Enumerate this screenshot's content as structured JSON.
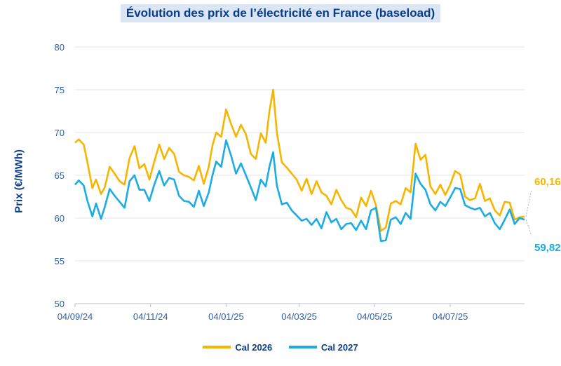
{
  "chart_data": {
    "type": "line",
    "title": "Évolution des prix de l’électricité en France (baseload)",
    "ylabel": "Prix (€/MWh)",
    "ylim": [
      50,
      80
    ],
    "yticks": [
      "50",
      "55",
      "60",
      "65",
      "70",
      "75",
      "80"
    ],
    "xticks": [
      "04/09/24",
      "04/11/24",
      "04/01/25",
      "04/03/25",
      "04/05/25",
      "04/07/25"
    ],
    "x_range": [
      "2024-09-04",
      "2025-09-02"
    ],
    "grid": "horizontal",
    "legend_position": "bottom",
    "series": [
      {
        "name": "Cal 2026",
        "color": "#f7b500",
        "end_label": "60,16",
        "points": [
          [
            "2024-09-04",
            68.8
          ],
          [
            "2024-09-07",
            69.2
          ],
          [
            "2024-09-11",
            68.6
          ],
          [
            "2024-09-14",
            66.5
          ],
          [
            "2024-09-18",
            63.5
          ],
          [
            "2024-09-21",
            64.5
          ],
          [
            "2024-09-25",
            62.8
          ],
          [
            "2024-09-28",
            63.6
          ],
          [
            "2024-10-02",
            66.0
          ],
          [
            "2024-10-06",
            65.2
          ],
          [
            "2024-10-10",
            64.3
          ],
          [
            "2024-10-14",
            63.9
          ],
          [
            "2024-10-18",
            67.0
          ],
          [
            "2024-10-22",
            68.4
          ],
          [
            "2024-10-26",
            65.8
          ],
          [
            "2024-10-30",
            66.3
          ],
          [
            "2024-11-03",
            64.5
          ],
          [
            "2024-11-07",
            66.6
          ],
          [
            "2024-11-11",
            68.6
          ],
          [
            "2024-11-15",
            66.9
          ],
          [
            "2024-11-19",
            68.2
          ],
          [
            "2024-11-23",
            67.5
          ],
          [
            "2024-11-27",
            65.4
          ],
          [
            "2024-12-01",
            65.0
          ],
          [
            "2024-12-05",
            64.8
          ],
          [
            "2024-12-09",
            64.4
          ],
          [
            "2024-12-13",
            66.1
          ],
          [
            "2024-12-17",
            64.0
          ],
          [
            "2024-12-21",
            66.0
          ],
          [
            "2024-12-24",
            68.5
          ],
          [
            "2024-12-27",
            70.0
          ],
          [
            "2024-12-31",
            69.5
          ],
          [
            "2025-01-04",
            72.7
          ],
          [
            "2025-01-08",
            71.0
          ],
          [
            "2025-01-12",
            69.5
          ],
          [
            "2025-01-16",
            70.9
          ],
          [
            "2025-01-20",
            69.8
          ],
          [
            "2025-01-24",
            67.5
          ],
          [
            "2025-01-28",
            66.9
          ],
          [
            "2025-02-01",
            69.9
          ],
          [
            "2025-02-05",
            68.8
          ],
          [
            "2025-02-08",
            72.5
          ],
          [
            "2025-02-11",
            75.0
          ],
          [
            "2025-02-14",
            70.0
          ],
          [
            "2025-02-18",
            66.5
          ],
          [
            "2025-02-22",
            65.9
          ],
          [
            "2025-02-26",
            65.2
          ],
          [
            "2025-03-02",
            64.5
          ],
          [
            "2025-03-06",
            63.2
          ],
          [
            "2025-03-10",
            64.6
          ],
          [
            "2025-03-14",
            62.8
          ],
          [
            "2025-03-18",
            64.3
          ],
          [
            "2025-03-22",
            63.0
          ],
          [
            "2025-03-26",
            62.6
          ],
          [
            "2025-03-30",
            61.6
          ],
          [
            "2025-04-03",
            63.3
          ],
          [
            "2025-04-07",
            62.1
          ],
          [
            "2025-04-11",
            61.2
          ],
          [
            "2025-04-15",
            61.0
          ],
          [
            "2025-04-19",
            60.1
          ],
          [
            "2025-04-23",
            62.4
          ],
          [
            "2025-04-27",
            61.4
          ],
          [
            "2025-05-01",
            63.2
          ],
          [
            "2025-05-05",
            61.5
          ],
          [
            "2025-05-09",
            58.5
          ],
          [
            "2025-05-13",
            58.9
          ],
          [
            "2025-05-17",
            61.7
          ],
          [
            "2025-05-21",
            62.0
          ],
          [
            "2025-05-25",
            61.6
          ],
          [
            "2025-05-29",
            63.5
          ],
          [
            "2025-06-02",
            63.0
          ],
          [
            "2025-06-06",
            68.7
          ],
          [
            "2025-06-10",
            66.8
          ],
          [
            "2025-06-14",
            67.4
          ],
          [
            "2025-06-18",
            63.7
          ],
          [
            "2025-06-22",
            62.8
          ],
          [
            "2025-06-26",
            63.9
          ],
          [
            "2025-06-30",
            62.7
          ],
          [
            "2025-07-04",
            63.9
          ],
          [
            "2025-07-08",
            65.5
          ],
          [
            "2025-07-12",
            65.1
          ],
          [
            "2025-07-16",
            62.5
          ],
          [
            "2025-07-20",
            62.1
          ],
          [
            "2025-07-24",
            62.3
          ],
          [
            "2025-07-28",
            64.0
          ],
          [
            "2025-08-01",
            62.0
          ],
          [
            "2025-08-05",
            62.3
          ],
          [
            "2025-08-09",
            60.9
          ],
          [
            "2025-08-13",
            60.3
          ],
          [
            "2025-08-17",
            61.9
          ],
          [
            "2025-08-21",
            61.8
          ],
          [
            "2025-08-25",
            59.8
          ],
          [
            "2025-08-29",
            60.1
          ],
          [
            "2025-09-02",
            60.16
          ]
        ]
      },
      {
        "name": "Cal 2027",
        "color": "#1aace2",
        "end_label": "59,82",
        "points": [
          [
            "2024-09-04",
            63.9
          ],
          [
            "2024-09-07",
            64.4
          ],
          [
            "2024-09-11",
            63.8
          ],
          [
            "2024-09-14",
            62.0
          ],
          [
            "2024-09-18",
            60.2
          ],
          [
            "2024-09-21",
            61.7
          ],
          [
            "2024-09-25",
            59.9
          ],
          [
            "2024-09-28",
            61.3
          ],
          [
            "2024-10-02",
            63.4
          ],
          [
            "2024-10-06",
            62.6
          ],
          [
            "2024-10-10",
            61.9
          ],
          [
            "2024-10-14",
            61.2
          ],
          [
            "2024-10-18",
            64.3
          ],
          [
            "2024-10-22",
            65.0
          ],
          [
            "2024-10-26",
            63.3
          ],
          [
            "2024-10-30",
            63.3
          ],
          [
            "2024-11-03",
            62.0
          ],
          [
            "2024-11-07",
            63.9
          ],
          [
            "2024-11-11",
            65.5
          ],
          [
            "2024-11-15",
            63.8
          ],
          [
            "2024-11-19",
            64.7
          ],
          [
            "2024-11-23",
            64.5
          ],
          [
            "2024-11-27",
            62.6
          ],
          [
            "2024-12-01",
            62.0
          ],
          [
            "2024-12-05",
            61.9
          ],
          [
            "2024-12-09",
            61.3
          ],
          [
            "2024-12-13",
            63.2
          ],
          [
            "2024-12-17",
            61.4
          ],
          [
            "2024-12-21",
            63.0
          ],
          [
            "2024-12-24",
            65.0
          ],
          [
            "2024-12-27",
            66.6
          ],
          [
            "2024-12-31",
            66.0
          ],
          [
            "2025-01-04",
            69.1
          ],
          [
            "2025-01-08",
            67.3
          ],
          [
            "2025-01-12",
            65.2
          ],
          [
            "2025-01-16",
            66.4
          ],
          [
            "2025-01-20",
            65.0
          ],
          [
            "2025-01-24",
            63.6
          ],
          [
            "2025-01-28",
            62.1
          ],
          [
            "2025-02-01",
            64.5
          ],
          [
            "2025-02-05",
            63.7
          ],
          [
            "2025-02-08",
            66.0
          ],
          [
            "2025-02-11",
            67.7
          ],
          [
            "2025-02-14",
            63.8
          ],
          [
            "2025-02-18",
            61.6
          ],
          [
            "2025-02-22",
            61.8
          ],
          [
            "2025-02-26",
            60.9
          ],
          [
            "2025-03-02",
            60.3
          ],
          [
            "2025-03-06",
            59.7
          ],
          [
            "2025-03-10",
            59.9
          ],
          [
            "2025-03-14",
            59.2
          ],
          [
            "2025-03-18",
            59.9
          ],
          [
            "2025-03-22",
            58.8
          ],
          [
            "2025-03-26",
            60.7
          ],
          [
            "2025-03-30",
            59.5
          ],
          [
            "2025-04-03",
            59.9
          ],
          [
            "2025-04-07",
            58.7
          ],
          [
            "2025-04-11",
            59.3
          ],
          [
            "2025-04-15",
            59.4
          ],
          [
            "2025-04-19",
            58.6
          ],
          [
            "2025-04-23",
            59.7
          ],
          [
            "2025-04-27",
            58.7
          ],
          [
            "2025-05-01",
            60.9
          ],
          [
            "2025-05-05",
            61.2
          ],
          [
            "2025-05-09",
            57.3
          ],
          [
            "2025-05-13",
            57.4
          ],
          [
            "2025-05-17",
            59.8
          ],
          [
            "2025-05-21",
            60.1
          ],
          [
            "2025-05-25",
            59.3
          ],
          [
            "2025-05-29",
            60.6
          ],
          [
            "2025-06-02",
            59.9
          ],
          [
            "2025-06-06",
            65.2
          ],
          [
            "2025-06-10",
            64.0
          ],
          [
            "2025-06-14",
            63.3
          ],
          [
            "2025-06-18",
            61.6
          ],
          [
            "2025-06-22",
            60.9
          ],
          [
            "2025-06-26",
            61.9
          ],
          [
            "2025-06-30",
            61.4
          ],
          [
            "2025-07-04",
            62.4
          ],
          [
            "2025-07-08",
            63.5
          ],
          [
            "2025-07-12",
            63.4
          ],
          [
            "2025-07-16",
            61.5
          ],
          [
            "2025-07-20",
            61.2
          ],
          [
            "2025-07-24",
            61.0
          ],
          [
            "2025-07-28",
            61.2
          ],
          [
            "2025-08-01",
            60.2
          ],
          [
            "2025-08-05",
            60.6
          ],
          [
            "2025-08-09",
            59.4
          ],
          [
            "2025-08-13",
            58.7
          ],
          [
            "2025-08-17",
            59.8
          ],
          [
            "2025-08-21",
            61.0
          ],
          [
            "2025-08-25",
            59.3
          ],
          [
            "2025-08-29",
            60.0
          ],
          [
            "2025-09-02",
            59.82
          ]
        ]
      }
    ]
  }
}
